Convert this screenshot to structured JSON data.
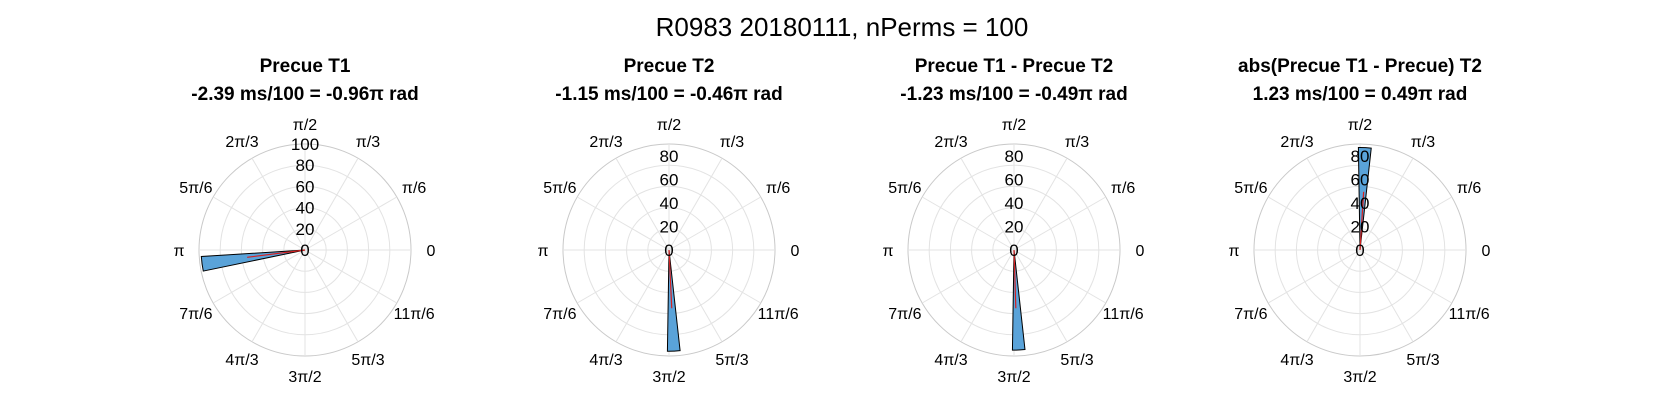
{
  "figure_title": "R0983 20180111, nPerms = 100",
  "colors": {
    "bar_fill": "#5aa3d9",
    "bar_edge": "#000000",
    "mean_line": "#d62020",
    "grid": "#e3e3e3"
  },
  "chart_data": [
    {
      "type": "polar-histogram",
      "title": "Precue T1",
      "subtitle": "-2.39 ms/100 = -0.96π rad",
      "theta_tick_labels": [
        "0",
        "π/6",
        "π/3",
        "π/2",
        "2π/3",
        "5π/6",
        "π",
        "7π/6",
        "4π/3",
        "3π/2",
        "5π/3",
        "11π/6"
      ],
      "r_ticks": [
        0,
        20,
        40,
        60,
        80,
        100
      ],
      "rlim": [
        0,
        100
      ],
      "bars": [
        {
          "theta_start_pi": 1.02,
          "theta_end_pi": 1.065,
          "count": 98
        }
      ],
      "mean_angle_pi": 1.04
    },
    {
      "type": "polar-histogram",
      "title": "Precue T2",
      "subtitle": "-1.15 ms/100 = -0.46π rad",
      "theta_tick_labels": [
        "0",
        "π/6",
        "π/3",
        "π/2",
        "2π/3",
        "5π/6",
        "π",
        "7π/6",
        "4π/3",
        "3π/2",
        "5π/3",
        "11π/6"
      ],
      "r_ticks": [
        0,
        20,
        40,
        60,
        80
      ],
      "rlim": [
        0,
        90
      ],
      "bars": [
        {
          "theta_start_pi": 1.495,
          "theta_end_pi": 1.535,
          "count": 86
        }
      ],
      "mean_angle_pi": 1.515
    },
    {
      "type": "polar-histogram",
      "title": "Precue T1 - Precue T2",
      "subtitle": "-1.23 ms/100 = -0.49π rad",
      "theta_tick_labels": [
        "0",
        "π/6",
        "π/3",
        "π/2",
        "2π/3",
        "5π/6",
        "π",
        "7π/6",
        "4π/3",
        "3π/2",
        "5π/3",
        "11π/6"
      ],
      "r_ticks": [
        0,
        20,
        40,
        60,
        80
      ],
      "rlim": [
        0,
        90
      ],
      "bars": [
        {
          "theta_start_pi": 1.495,
          "theta_end_pi": 1.535,
          "count": 85
        }
      ],
      "mean_angle_pi": 1.51
    },
    {
      "type": "polar-histogram",
      "title": "abs(Precue T1 - Precue) T2",
      "subtitle": "1.23 ms/100 = 0.49π rad",
      "theta_tick_labels": [
        "0",
        "π/6",
        "π/3",
        "π/2",
        "2π/3",
        "5π/6",
        "π",
        "7π/6",
        "4π/3",
        "3π/2",
        "5π/3",
        "11π/6"
      ],
      "r_ticks": [
        0,
        20,
        40,
        60,
        80
      ],
      "rlim": [
        0,
        90
      ],
      "bars": [
        {
          "theta_start_pi": 0.465,
          "theta_end_pi": 0.505,
          "count": 87
        }
      ],
      "mean_angle_pi": 0.48
    }
  ]
}
